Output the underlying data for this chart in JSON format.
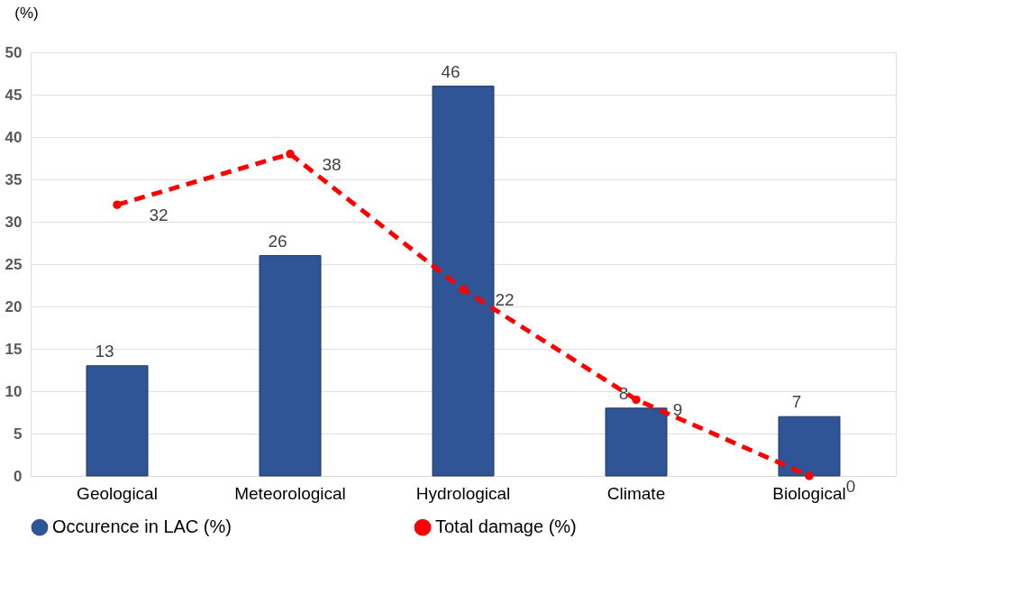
{
  "chart_data": {
    "type": "bar",
    "categories": [
      "Geological",
      "Meteorological",
      "Hydrological",
      "Climate",
      "Biological"
    ],
    "ylabel": "(%)",
    "ylim": [
      0,
      50
    ],
    "yticks": [
      0,
      5,
      10,
      15,
      20,
      25,
      30,
      35,
      40,
      45,
      50
    ],
    "grid": "y",
    "legend": "bottom",
    "data_labels": true,
    "series": [
      {
        "name": "Occurence in LAC (%)",
        "color": "#2f5597",
        "values": [
          13,
          26,
          46,
          8,
          7
        ]
      },
      {
        "name": "Total damage (%)",
        "type": "line",
        "color": "#ff0000",
        "line_style": "dashed",
        "marker": "circle",
        "values": [
          32,
          38,
          22,
          9,
          0
        ]
      }
    ]
  }
}
